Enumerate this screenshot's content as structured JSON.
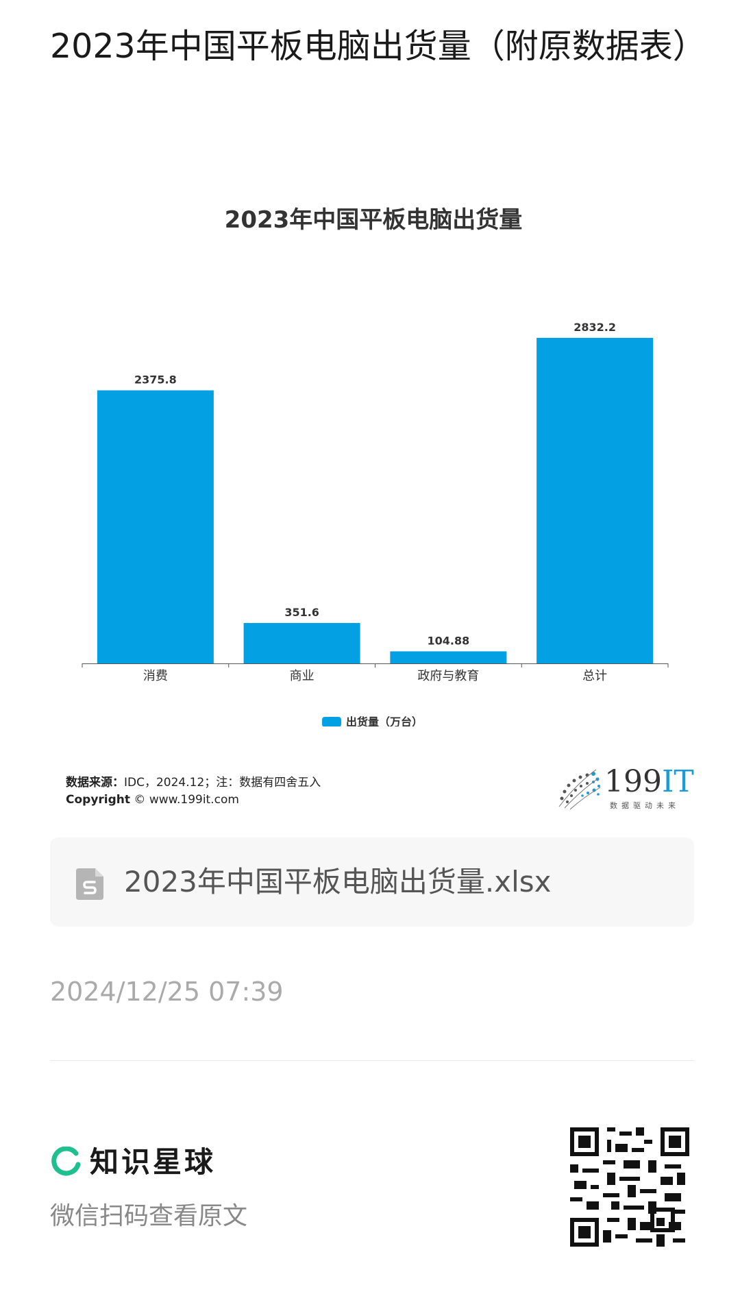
{
  "article": {
    "title": "2023年中国平板电脑出货量（附原数据表）",
    "source_label": "数据来源：",
    "source_text": "IDC，2024.12；注：数据有四舍五入",
    "copyright_label": "Copyright",
    "copyright_text": "© www.199it.com",
    "logo_number": "199",
    "logo_it": "IT",
    "logo_slogan": "数据驱动未来",
    "file_name": "2023年中国平板电脑出货量.xlsx",
    "file_icon": "spreadsheet-file-icon",
    "timestamp": "2024/12/25 07:39"
  },
  "footer": {
    "brand": "知识星球",
    "brand_icon": "zsxq-ring-icon",
    "scan_hint": "微信扫码查看原文",
    "qr_icon": "qr-code-icon"
  },
  "colors": {
    "bar": "#03a0e4",
    "brand_green": "#1fbf8f",
    "logo_blue": "#1a9ad6"
  },
  "chart_data": {
    "type": "bar",
    "title": "2023年中国平板电脑出货量",
    "categories": [
      "消费",
      "商业",
      "政府与教育",
      "总计"
    ],
    "series": [
      {
        "name": "出货量（万台）",
        "values": [
          2375.8,
          351.6,
          104.88,
          2832.2
        ]
      }
    ],
    "value_labels": [
      "2375.8",
      "351.6",
      "104.88",
      "2832.2"
    ],
    "ylim": [
      0,
      2832.2
    ],
    "grid": false,
    "legend": "bottom-center"
  }
}
